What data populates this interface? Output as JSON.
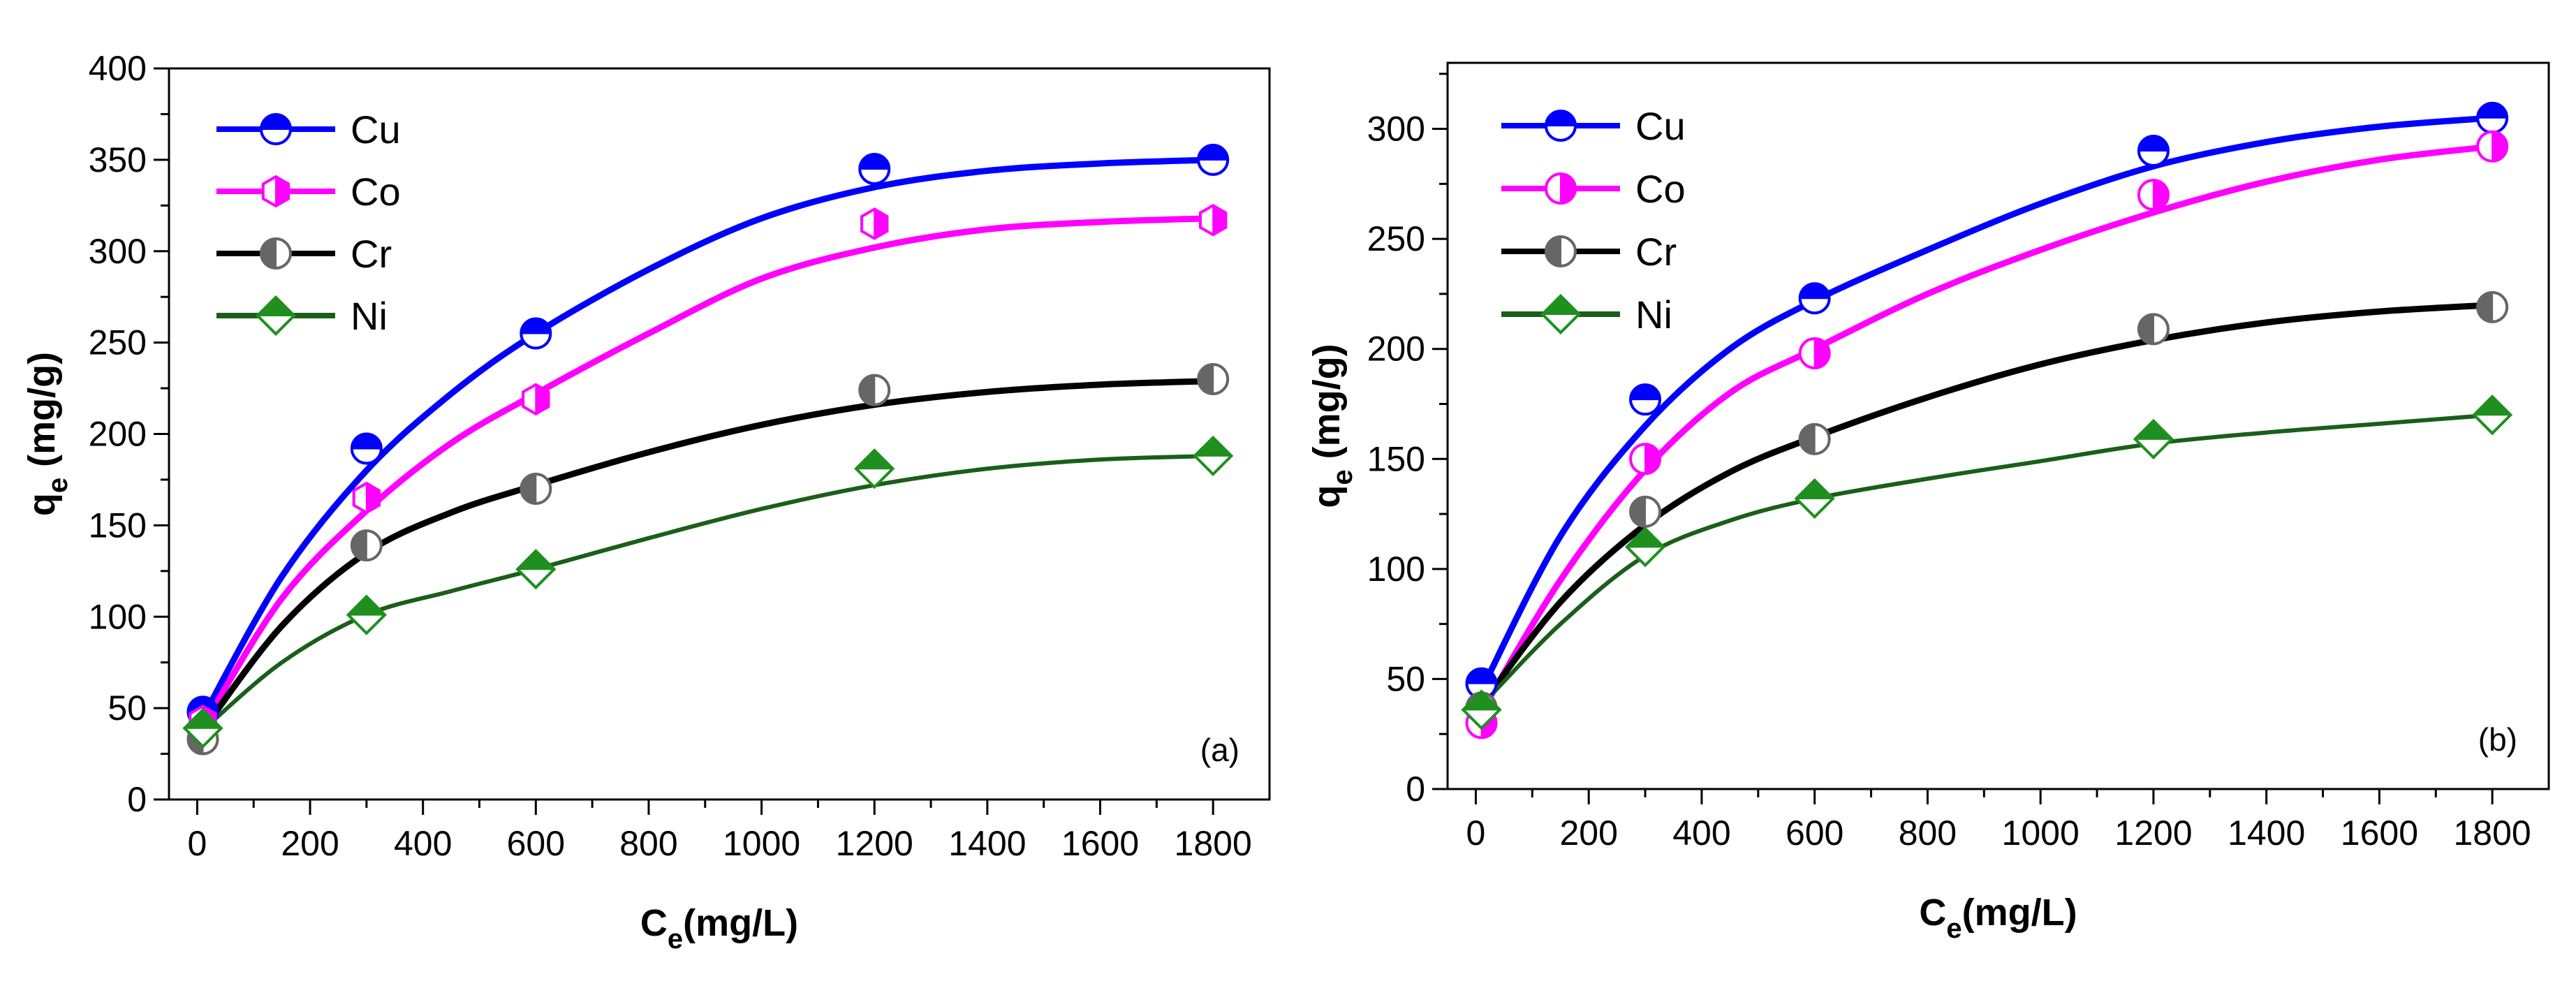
{
  "colors": {
    "Cu": "#0000ff",
    "Co": "#ff00ff",
    "Cr": "#000000",
    "Ni": "#1a5e1a",
    "Ni_marker": "#1f8f1f",
    "Cr_marker": "#666666"
  },
  "chart_data": [
    {
      "type": "scatter",
      "panel_label": "(a)",
      "xlabel": {
        "main": "C",
        "sub": "e",
        "rest": "(mg/L)"
      },
      "ylabel": {
        "main": "q",
        "sub": "e",
        "rest": " (mg/g)"
      },
      "xlim": [
        -50,
        1900
      ],
      "ylim": [
        0,
        400
      ],
      "xticks": [
        0,
        200,
        400,
        600,
        800,
        1000,
        1200,
        1400,
        1600,
        1800
      ],
      "yticks": [
        0,
        50,
        100,
        150,
        200,
        250,
        300,
        350,
        400
      ],
      "legend": "top-left",
      "series": [
        {
          "name": "Cu",
          "marker": "circle-top",
          "x": [
            10,
            300,
            600,
            1200,
            1800
          ],
          "y": [
            48,
            192,
            255,
            345,
            350
          ],
          "fit": [
            [
              10,
              45
            ],
            [
              150,
              122
            ],
            [
              300,
              180
            ],
            [
              450,
              222
            ],
            [
              600,
              255
            ],
            [
              800,
              290
            ],
            [
              1000,
              318
            ],
            [
              1200,
              335
            ],
            [
              1400,
              344
            ],
            [
              1600,
              348
            ],
            [
              1800,
              350
            ]
          ]
        },
        {
          "name": "Co",
          "marker": "hex-right",
          "x": [
            10,
            300,
            600,
            1200,
            1800
          ],
          "y": [
            43,
            165,
            219,
            315,
            317
          ],
          "fit": [
            [
              10,
              40
            ],
            [
              150,
              110
            ],
            [
              300,
              158
            ],
            [
              450,
              195
            ],
            [
              600,
              222
            ],
            [
              800,
              255
            ],
            [
              1000,
              285
            ],
            [
              1200,
              302
            ],
            [
              1400,
              312
            ],
            [
              1600,
              316
            ],
            [
              1800,
              318
            ]
          ]
        },
        {
          "name": "Cr",
          "marker": "circle-left",
          "x": [
            10,
            300,
            600,
            1200,
            1800
          ],
          "y": [
            33,
            139,
            170,
            224,
            230
          ],
          "fit": [
            [
              10,
              38
            ],
            [
              150,
              95
            ],
            [
              300,
              135
            ],
            [
              450,
              157
            ],
            [
              600,
              172
            ],
            [
              800,
              190
            ],
            [
              1000,
              205
            ],
            [
              1200,
              216
            ],
            [
              1400,
              223
            ],
            [
              1600,
              227
            ],
            [
              1800,
              229
            ]
          ]
        },
        {
          "name": "Ni",
          "marker": "diamond-top",
          "x": [
            10,
            300,
            600,
            1200,
            1800
          ],
          "y": [
            39,
            101,
            126,
            181,
            188
          ],
          "fit": [
            [
              10,
              38
            ],
            [
              150,
              75
            ],
            [
              300,
              101
            ],
            [
              450,
              114
            ],
            [
              600,
              126
            ],
            [
              800,
              143
            ],
            [
              1000,
              159
            ],
            [
              1200,
              172
            ],
            [
              1400,
              181
            ],
            [
              1600,
              186
            ],
            [
              1800,
              188
            ]
          ]
        }
      ]
    },
    {
      "type": "scatter",
      "panel_label": "(b)",
      "xlabel": {
        "main": "C",
        "sub": "e",
        "rest": "(mg/L)"
      },
      "ylabel": {
        "main": "q",
        "sub": "e",
        "rest": " (mg/g)"
      },
      "xlim": [
        -50,
        1900
      ],
      "ylim": [
        0,
        330
      ],
      "xticks": [
        0,
        200,
        400,
        600,
        800,
        1000,
        1200,
        1400,
        1600,
        1800
      ],
      "yticks": [
        0,
        50,
        100,
        150,
        200,
        250,
        300
      ],
      "legend": "top-left",
      "series": [
        {
          "name": "Cu",
          "marker": "circle-top",
          "x": [
            10,
            300,
            600,
            1200,
            1800
          ],
          "y": [
            48,
            177,
            223,
            290,
            305
          ],
          "fit": [
            [
              10,
              45
            ],
            [
              150,
              115
            ],
            [
              300,
              165
            ],
            [
              450,
              200
            ],
            [
              600,
              222
            ],
            [
              800,
              245
            ],
            [
              1000,
              266
            ],
            [
              1200,
              283
            ],
            [
              1400,
              294
            ],
            [
              1600,
              301
            ],
            [
              1800,
              305
            ]
          ]
        },
        {
          "name": "Co",
          "marker": "circle-right",
          "x": [
            10,
            300,
            600,
            1200,
            1800
          ],
          "y": [
            30,
            150,
            198,
            270,
            292
          ],
          "fit": [
            [
              10,
              35
            ],
            [
              150,
              95
            ],
            [
              300,
              145
            ],
            [
              450,
              180
            ],
            [
              600,
              200
            ],
            [
              800,
              225
            ],
            [
              1000,
              245
            ],
            [
              1200,
              262
            ],
            [
              1400,
              276
            ],
            [
              1600,
              286
            ],
            [
              1800,
              292
            ]
          ]
        },
        {
          "name": "Cr",
          "marker": "circle-left",
          "x": [
            10,
            300,
            600,
            1200,
            1800
          ],
          "y": [
            37,
            126,
            159,
            209,
            219
          ],
          "fit": [
            [
              10,
              38
            ],
            [
              150,
              85
            ],
            [
              300,
              120
            ],
            [
              450,
              144
            ],
            [
              600,
              160
            ],
            [
              800,
              178
            ],
            [
              1000,
              193
            ],
            [
              1200,
              204
            ],
            [
              1400,
              212
            ],
            [
              1600,
              217
            ],
            [
              1800,
              220
            ]
          ]
        },
        {
          "name": "Ni",
          "marker": "diamond-top",
          "x": [
            10,
            300,
            600,
            1200,
            1800
          ],
          "y": [
            36,
            110,
            132,
            159,
            170
          ],
          "fit": [
            [
              10,
              38
            ],
            [
              150,
              75
            ],
            [
              300,
              106
            ],
            [
              450,
              122
            ],
            [
              600,
              132
            ],
            [
              800,
              141
            ],
            [
              1000,
              149
            ],
            [
              1200,
              157
            ],
            [
              1400,
              162
            ],
            [
              1600,
              166
            ],
            [
              1800,
              170
            ]
          ]
        }
      ]
    }
  ]
}
